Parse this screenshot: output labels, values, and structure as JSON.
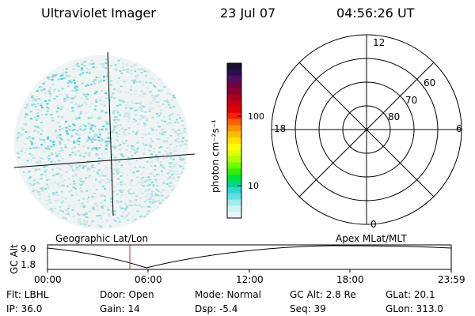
{
  "header": {
    "instrument": "Ultraviolet Imager",
    "date": "23 Jul 07",
    "time": "04:56:26 UT"
  },
  "colorbar": {
    "unit_label": "photon cm⁻²s⁻¹",
    "ticks": [
      "100",
      "10"
    ],
    "colors_top_to_bottom": [
      "#1a1030",
      "#2a1050",
      "#4a1060",
      "#700040",
      "#8a0030",
      "#a80020",
      "#c80010",
      "#e00000",
      "#ff2000",
      "#ff6000",
      "#ff9000",
      "#ffc000",
      "#ffe000",
      "#ffff00",
      "#e0ff00",
      "#b0ff00",
      "#70ff00",
      "#30f000",
      "#00e040",
      "#00d890",
      "#30d8d0",
      "#60e0e0",
      "#a0ecec",
      "#d0f2f2",
      "#e8f6f6"
    ]
  },
  "geo_panel": {
    "label": "Geographic Lat/Lon"
  },
  "polar_panel": {
    "label": "Apex MLat/MLT",
    "mlt_labels": {
      "top": "12",
      "left": "18",
      "right": "6",
      "bottom": "0"
    },
    "lat_labels": [
      "60",
      "70",
      "80"
    ]
  },
  "altitude_plot": {
    "ylabel": "GC Alt",
    "yticks": [
      "9.0",
      "1.8"
    ],
    "xticks": [
      "00:00",
      "06:00",
      "12:00",
      "18:00",
      "23:59"
    ]
  },
  "status": {
    "flt": "Flt: LBHL",
    "ip": "IP: 36.0",
    "door": "Door: Open",
    "gain": "Gain: 14",
    "mode": "Mode: Normal",
    "dsp": "Dsp:   -5.4",
    "gcalt": "GC Alt: 2.8 Re",
    "seq": "Seq: 39",
    "glat": "GLat: 20.1",
    "glon": "GLon: 313.0"
  }
}
